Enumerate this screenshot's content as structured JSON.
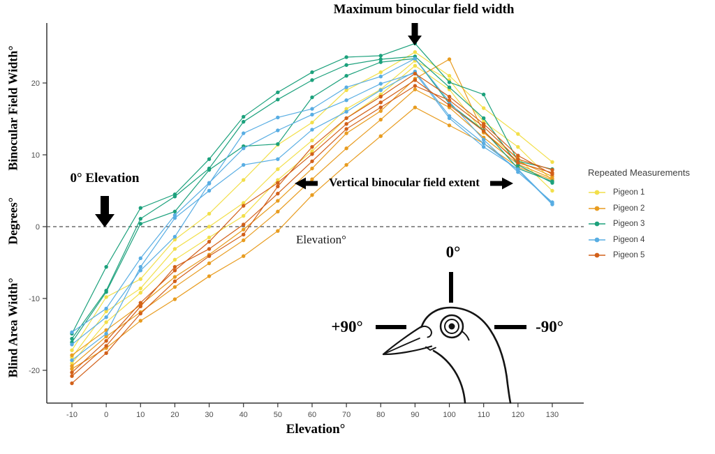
{
  "figure": {
    "annotations": {
      "max_binocular": "Maximum binocular field width",
      "zero_elevation": "0° Elevation",
      "vertical_extent": "Vertical binocular field extent",
      "inner_axis_label": "Elevation°"
    },
    "axes": {
      "x_label": "Elevation°",
      "y_label_top": "Binocular Field Width°",
      "y_label_middle": "Degrees°",
      "y_label_bottom": "Blind Area Width°",
      "x_ticks": [
        -10,
        0,
        10,
        20,
        30,
        40,
        50,
        60,
        70,
        80,
        90,
        100,
        110,
        120,
        130
      ],
      "y_ticks": [
        20,
        10,
        0,
        -10,
        -20
      ],
      "tick_label_color": "#4d4d4d",
      "axis_line_color": "#333333"
    },
    "legend": {
      "title": "Repeated Measurements",
      "items": [
        {
          "label": "Pigeon 1",
          "color": "#F2DF4A"
        },
        {
          "label": "Pigeon 2",
          "color": "#E89C20"
        },
        {
          "label": "Pigeon 3",
          "color": "#1CA17C"
        },
        {
          "label": "Pigeon 4",
          "color": "#58ADE3"
        },
        {
          "label": "Pigeon 5",
          "color": "#D2601A"
        }
      ]
    },
    "head_diagram": {
      "top_label": "0°",
      "left_label": "+90°",
      "right_label": "-90°"
    }
  },
  "chart_data": {
    "type": "line",
    "title": "",
    "xlabel": "Elevation°",
    "ylabel": "Binocular Field Width° / Degrees° / Blind Area Width°",
    "x": [
      -10,
      0,
      10,
      20,
      30,
      40,
      50,
      60,
      70,
      80,
      90,
      100,
      110,
      120,
      130
    ],
    "xlim": [
      -14,
      136
    ],
    "ylim": [
      -24,
      28
    ],
    "grid": false,
    "zero_reference_line": 0,
    "legend_position": "right",
    "series": [
      {
        "name": "Pigeon 1",
        "measurement": 1,
        "color": "#F2DF4A",
        "values": [
          -17.2,
          -9.8,
          -7.3,
          -1.8,
          1.8,
          6.5,
          11.4,
          14.5,
          19.0,
          21.5,
          24.3,
          21.0,
          16.5,
          12.9,
          9.0
        ]
      },
      {
        "name": "Pigeon 1",
        "measurement": 2,
        "color": "#F2DF4A",
        "values": [
          -18.2,
          -11.8,
          -8.6,
          -3.1,
          0.0,
          3.3,
          8.0,
          12.0,
          16.4,
          19.1,
          23.1,
          20.4,
          14.6,
          11.1,
          6.4
        ]
      },
      {
        "name": "Pigeon 1",
        "measurement": 3,
        "color": "#F2DF4A",
        "values": [
          -19.0,
          -13.3,
          -9.2,
          -4.6,
          -1.5,
          1.5,
          6.5,
          10.5,
          15.1,
          18.4,
          22.4,
          19.1,
          13.1,
          9.6,
          5.0
        ]
      },
      {
        "name": "Pigeon 2",
        "measurement": 1,
        "color": "#E89C20",
        "values": [
          -17.9,
          -14.4,
          -10.9,
          -7.0,
          -3.9,
          -0.4,
          3.6,
          8.1,
          13.0,
          16.1,
          20.6,
          23.3,
          13.1,
          9.1,
          7.0
        ]
      },
      {
        "name": "Pigeon 2",
        "measurement": 2,
        "color": "#E89C20",
        "values": [
          -19.4,
          -15.3,
          -11.9,
          -8.4,
          -5.1,
          -1.9,
          2.1,
          6.6,
          10.9,
          14.9,
          19.1,
          16.6,
          12.4,
          8.7,
          6.7
        ]
      },
      {
        "name": "Pigeon 2",
        "measurement": 3,
        "color": "#E89C20",
        "values": [
          -19.8,
          -16.9,
          -13.1,
          -10.1,
          -6.9,
          -4.1,
          -0.6,
          4.4,
          8.6,
          12.6,
          16.6,
          14.1,
          11.6,
          8.3,
          6.5
        ]
      },
      {
        "name": "Pigeon 3",
        "measurement": 1,
        "color": "#1CA17C",
        "values": [
          -14.9,
          -5.6,
          2.6,
          4.5,
          9.4,
          15.3,
          18.7,
          21.5,
          23.6,
          23.8,
          25.5,
          20.1,
          18.4,
          9.1,
          8.0
        ]
      },
      {
        "name": "Pigeon 3",
        "measurement": 2,
        "color": "#1CA17C",
        "values": [
          -15.6,
          -8.9,
          1.1,
          4.2,
          8.1,
          14.6,
          17.7,
          20.4,
          22.5,
          23.3,
          23.7,
          19.4,
          15.1,
          8.6,
          6.1
        ]
      },
      {
        "name": "Pigeon 3",
        "measurement": 3,
        "color": "#1CA17C",
        "values": [
          -16.1,
          -9.1,
          0.4,
          2.1,
          7.9,
          11.2,
          11.5,
          18.0,
          21.0,
          22.9,
          23.4,
          17.1,
          13.4,
          8.1,
          6.3
        ]
      },
      {
        "name": "Pigeon 4",
        "measurement": 1,
        "color": "#58ADE3",
        "values": [
          -14.7,
          -11.4,
          -4.4,
          1.6,
          6.1,
          10.9,
          13.4,
          15.6,
          17.6,
          19.9,
          21.4,
          15.1,
          11.1,
          8.0,
          3.2
        ]
      },
      {
        "name": "Pigeon 4",
        "measurement": 2,
        "color": "#58ADE3",
        "values": [
          -16.4,
          -12.6,
          -6.1,
          -1.4,
          6.0,
          13.0,
          15.2,
          16.4,
          19.4,
          20.9,
          23.4,
          17.4,
          12.1,
          7.6,
          3.4
        ]
      },
      {
        "name": "Pigeon 4",
        "measurement": 3,
        "color": "#58ADE3",
        "values": [
          -18.6,
          -14.9,
          -5.6,
          1.2,
          5.0,
          8.6,
          9.4,
          13.5,
          16.0,
          19.0,
          21.6,
          15.4,
          11.6,
          7.9,
          3.1
        ]
      },
      {
        "name": "Pigeon 5",
        "measurement": 1,
        "color": "#D2601A",
        "values": [
          -20.8,
          -16.6,
          -11.1,
          -5.6,
          -3.1,
          0.3,
          4.6,
          9.1,
          13.6,
          16.6,
          19.6,
          17.6,
          13.9,
          9.4,
          7.9
        ]
      },
      {
        "name": "Pigeon 5",
        "measurement": 2,
        "color": "#D2601A",
        "values": [
          -21.8,
          -17.6,
          -12.1,
          -7.6,
          -4.1,
          -1.1,
          5.6,
          11.1,
          15.1,
          18.1,
          21.3,
          18.1,
          14.3,
          9.9,
          7.3
        ]
      },
      {
        "name": "Pigeon 5",
        "measurement": 3,
        "color": "#D2601A",
        "values": [
          -20.3,
          -15.9,
          -10.6,
          -6.1,
          -2.1,
          2.9,
          6.1,
          10.1,
          14.3,
          17.3,
          20.4,
          16.9,
          13.3,
          8.9,
          7.5
        ]
      }
    ]
  }
}
